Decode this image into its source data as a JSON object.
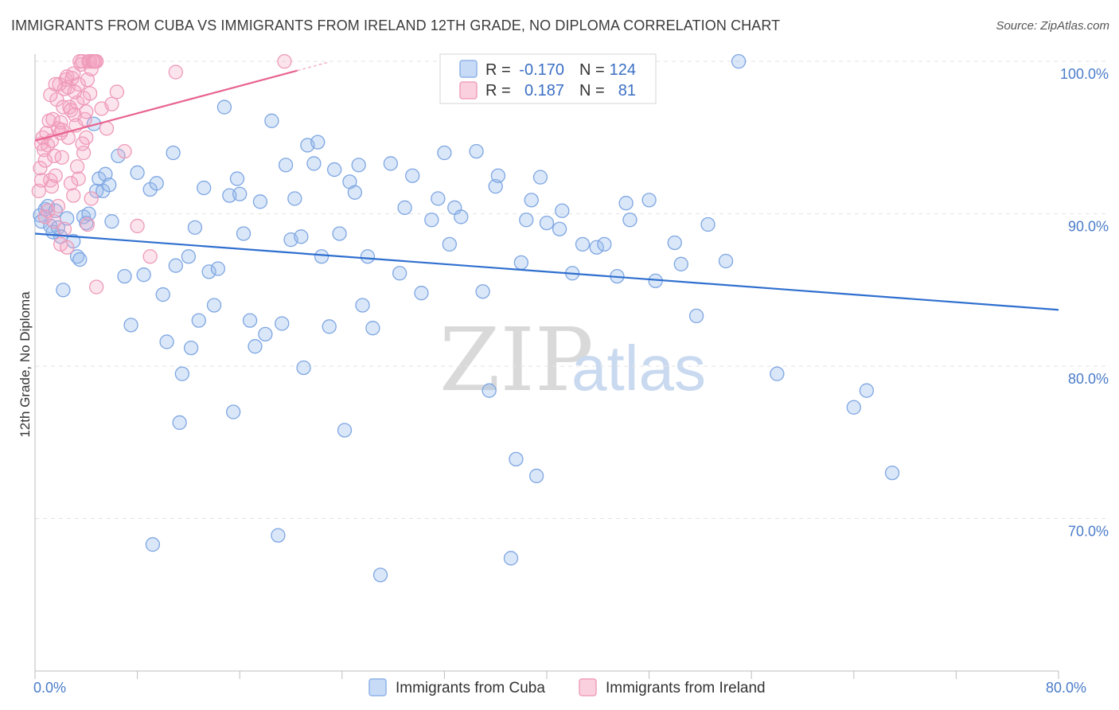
{
  "title": "IMMIGRANTS FROM CUBA VS IMMIGRANTS FROM IRELAND 12TH GRADE, NO DIPLOMA CORRELATION CHART",
  "source": "Source: ZipAtlas.com",
  "watermark": {
    "zip": "ZIP",
    "atlas": "atlas"
  },
  "legend": {
    "r_label": "R =",
    "n_label": "N =",
    "rows": [
      {
        "r": "-0.170",
        "n": "124",
        "color": "#8fb3e8",
        "fill": "#c7dbf6"
      },
      {
        "r": "0.187",
        "n": "81",
        "color": "#f0a0bc",
        "fill": "#fbd0de"
      }
    ]
  },
  "bottom_legend": [
    {
      "label": "Immigrants from Cuba",
      "color": "#8fb3e8",
      "fill": "#c7dbf6"
    },
    {
      "label": "Immigrants from Ireland",
      "color": "#f0a0bc",
      "fill": "#fbd0de"
    }
  ],
  "chart_data": {
    "type": "scatter",
    "title": "IMMIGRANTS FROM CUBA VS IMMIGRANTS FROM IRELAND 12TH GRADE, NO DIPLOMA CORRELATION CHART",
    "xlabel": "",
    "ylabel": "12th Grade, No Diploma",
    "xlim": [
      0,
      80
    ],
    "ylim": [
      60,
      101
    ],
    "x_ticks": [
      {
        "v": 0,
        "label": "0.0%"
      },
      {
        "v": 80,
        "label": "80.0%"
      }
    ],
    "y_ticks": [
      {
        "v": 100,
        "label": "100.0%"
      },
      {
        "v": 90,
        "label": "90.0%"
      },
      {
        "v": 80,
        "label": "80.0%"
      },
      {
        "v": 70,
        "label": "70.0%"
      }
    ],
    "grid": true,
    "series": [
      {
        "name": "Immigrants from Cuba",
        "color": "#6e9de0",
        "trend": {
          "x": [
            0,
            80
          ],
          "y": [
            88.7,
            83.7
          ],
          "color": "#2f6fcf"
        },
        "points": [
          [
            0.4,
            89.9
          ],
          [
            0.5,
            89.5
          ],
          [
            0.8,
            90.3
          ],
          [
            1.0,
            90.5
          ],
          [
            1.2,
            89.2
          ],
          [
            1.4,
            88.8
          ],
          [
            1.6,
            90.2
          ],
          [
            1.8,
            89.1
          ],
          [
            2.0,
            88.5
          ],
          [
            2.2,
            85.0
          ],
          [
            2.5,
            89.7
          ],
          [
            3.0,
            88.2
          ],
          [
            3.3,
            87.2
          ],
          [
            3.5,
            87.0
          ],
          [
            3.8,
            89.8
          ],
          [
            4.0,
            89.4
          ],
          [
            4.2,
            90.0
          ],
          [
            4.6,
            95.9
          ],
          [
            4.8,
            91.5
          ],
          [
            5.0,
            92.3
          ],
          [
            5.3,
            91.5
          ],
          [
            5.5,
            92.6
          ],
          [
            5.8,
            91.9
          ],
          [
            6.0,
            89.5
          ],
          [
            6.5,
            93.8
          ],
          [
            7.0,
            85.9
          ],
          [
            7.5,
            82.7
          ],
          [
            8.0,
            92.7
          ],
          [
            8.5,
            86.0
          ],
          [
            9.0,
            91.6
          ],
          [
            9.5,
            92.0
          ],
          [
            10.0,
            84.7
          ],
          [
            10.3,
            81.6
          ],
          [
            10.8,
            94.0
          ],
          [
            11.0,
            86.6
          ],
          [
            11.5,
            79.5
          ],
          [
            12.0,
            87.2
          ],
          [
            12.2,
            81.2
          ],
          [
            12.5,
            89.1
          ],
          [
            12.8,
            83.0
          ],
          [
            13.2,
            91.7
          ],
          [
            13.6,
            86.2
          ],
          [
            14.0,
            84.0
          ],
          [
            14.3,
            86.4
          ],
          [
            14.8,
            97.0
          ],
          [
            15.2,
            91.2
          ],
          [
            15.5,
            77.0
          ],
          [
            15.8,
            92.3
          ],
          [
            16.0,
            91.3
          ],
          [
            16.3,
            88.7
          ],
          [
            16.8,
            83.0
          ],
          [
            17.2,
            81.3
          ],
          [
            17.6,
            90.8
          ],
          [
            18.0,
            82.1
          ],
          [
            18.5,
            96.1
          ],
          [
            19.0,
            68.9
          ],
          [
            19.3,
            82.8
          ],
          [
            19.6,
            93.2
          ],
          [
            20.0,
            88.3
          ],
          [
            20.3,
            91.0
          ],
          [
            20.8,
            88.5
          ],
          [
            21.0,
            79.9
          ],
          [
            21.3,
            94.5
          ],
          [
            21.8,
            93.3
          ],
          [
            22.1,
            94.7
          ],
          [
            22.4,
            87.2
          ],
          [
            23.0,
            82.6
          ],
          [
            23.4,
            92.9
          ],
          [
            23.8,
            88.7
          ],
          [
            24.2,
            75.8
          ],
          [
            24.6,
            92.1
          ],
          [
            25.0,
            91.4
          ],
          [
            25.3,
            93.2
          ],
          [
            25.6,
            84.0
          ],
          [
            26.0,
            87.2
          ],
          [
            26.4,
            82.5
          ],
          [
            27.0,
            66.3
          ],
          [
            27.8,
            93.3
          ],
          [
            28.5,
            86.1
          ],
          [
            28.9,
            90.4
          ],
          [
            29.5,
            92.5
          ],
          [
            30.2,
            84.8
          ],
          [
            31.0,
            89.6
          ],
          [
            31.5,
            91.0
          ],
          [
            32.0,
            94.0
          ],
          [
            32.4,
            88.0
          ],
          [
            32.8,
            90.4
          ],
          [
            33.3,
            89.8
          ],
          [
            34.5,
            94.1
          ],
          [
            35.0,
            84.9
          ],
          [
            35.5,
            78.4
          ],
          [
            36.0,
            91.8
          ],
          [
            36.2,
            92.5
          ],
          [
            37.2,
            67.4
          ],
          [
            37.6,
            73.9
          ],
          [
            38.0,
            86.8
          ],
          [
            38.4,
            89.6
          ],
          [
            38.8,
            90.9
          ],
          [
            39.2,
            72.8
          ],
          [
            39.5,
            92.4
          ],
          [
            40.0,
            89.4
          ],
          [
            41.0,
            89.0
          ],
          [
            41.2,
            90.2
          ],
          [
            42.0,
            86.1
          ],
          [
            42.8,
            88.0
          ],
          [
            43.9,
            87.8
          ],
          [
            44.5,
            88.0
          ],
          [
            45.5,
            85.9
          ],
          [
            46.2,
            90.7
          ],
          [
            46.5,
            89.6
          ],
          [
            48.0,
            90.9
          ],
          [
            48.5,
            85.6
          ],
          [
            50.0,
            88.1
          ],
          [
            50.5,
            86.7
          ],
          [
            51.7,
            83.3
          ],
          [
            52.6,
            89.3
          ],
          [
            54.0,
            86.9
          ],
          [
            55.0,
            100.0
          ],
          [
            58.0,
            79.5
          ],
          [
            64.0,
            77.3
          ],
          [
            65.0,
            78.4
          ],
          [
            67.0,
            73.0
          ],
          [
            11.3,
            76.3
          ],
          [
            9.2,
            68.3
          ]
        ]
      },
      {
        "name": "Immigrants from Ireland",
        "color": "#ec8fb0",
        "trend": {
          "x": [
            0,
            20.5
          ],
          "y": [
            94.8,
            99.4
          ],
          "color": "#e8638e"
        },
        "points": [
          [
            0.3,
            91.5
          ],
          [
            0.4,
            93.0
          ],
          [
            0.5,
            94.6
          ],
          [
            0.6,
            95.0
          ],
          [
            0.7,
            94.2
          ],
          [
            0.8,
            93.5
          ],
          [
            0.9,
            95.3
          ],
          [
            1.0,
            94.5
          ],
          [
            1.1,
            96.1
          ],
          [
            1.2,
            92.2
          ],
          [
            1.3,
            94.8
          ],
          [
            1.4,
            96.2
          ],
          [
            1.5,
            93.8
          ],
          [
            1.6,
            92.5
          ],
          [
            1.7,
            97.5
          ],
          [
            1.8,
            95.6
          ],
          [
            1.9,
            98.5
          ],
          [
            2.0,
            96.0
          ],
          [
            2.1,
            95.5
          ],
          [
            2.2,
            97.0
          ],
          [
            2.3,
            98.2
          ],
          [
            2.4,
            98.8
          ],
          [
            2.5,
            99.0
          ],
          [
            2.6,
            98.3
          ],
          [
            2.7,
            97.0
          ],
          [
            2.8,
            96.8
          ],
          [
            2.9,
            98.9
          ],
          [
            3.0,
            99.2
          ],
          [
            3.1,
            96.5
          ],
          [
            3.2,
            95.8
          ],
          [
            3.3,
            97.3
          ],
          [
            3.4,
            98.5
          ],
          [
            3.5,
            100.0
          ],
          [
            3.6,
            99.8
          ],
          [
            3.7,
            100.0
          ],
          [
            3.8,
            97.6
          ],
          [
            3.9,
            96.2
          ],
          [
            4.0,
            95.0
          ],
          [
            4.1,
            98.8
          ],
          [
            4.2,
            100.0
          ],
          [
            4.3,
            100.0
          ],
          [
            4.4,
            99.5
          ],
          [
            4.5,
            100.0
          ],
          [
            4.6,
            100.0
          ],
          [
            4.7,
            100.0
          ],
          [
            4.8,
            100.0
          ],
          [
            1.0,
            90.2
          ],
          [
            1.5,
            89.5
          ],
          [
            2.0,
            88.0
          ],
          [
            2.5,
            87.8
          ],
          [
            3.0,
            91.2
          ],
          [
            3.4,
            92.3
          ],
          [
            3.8,
            94.0
          ],
          [
            4.1,
            89.3
          ],
          [
            4.4,
            91.0
          ],
          [
            4.8,
            85.2
          ],
          [
            5.2,
            96.9
          ],
          [
            5.6,
            95.6
          ],
          [
            6.0,
            97.2
          ],
          [
            6.4,
            98.0
          ],
          [
            7.0,
            94.1
          ],
          [
            8.0,
            89.2
          ],
          [
            9.0,
            87.2
          ],
          [
            11.0,
            99.3
          ],
          [
            19.5,
            100.0
          ],
          [
            1.2,
            97.8
          ],
          [
            1.6,
            98.5
          ],
          [
            2.1,
            93.7
          ],
          [
            2.6,
            95.0
          ],
          [
            3.1,
            98.0
          ],
          [
            0.5,
            92.2
          ],
          [
            0.8,
            89.8
          ],
          [
            1.3,
            91.8
          ],
          [
            1.8,
            90.5
          ],
          [
            2.3,
            89.0
          ],
          [
            2.8,
            92.0
          ],
          [
            3.3,
            93.1
          ],
          [
            3.7,
            94.6
          ],
          [
            4.0,
            96.7
          ],
          [
            4.3,
            97.9
          ],
          [
            2.0,
            95.3
          ]
        ]
      }
    ]
  }
}
